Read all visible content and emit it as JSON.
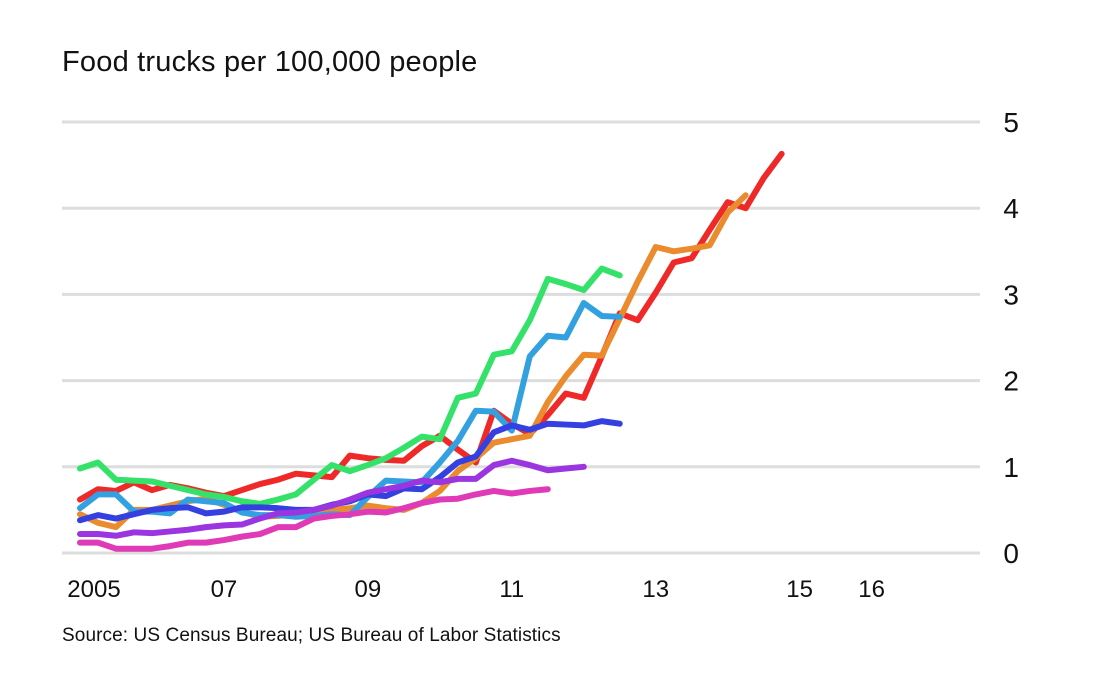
{
  "chart_data": {
    "type": "line",
    "title": "Food trucks per 100,000 people",
    "source": "Source: US Census Bureau; US Bureau of Labor Statistics",
    "xlabel": "",
    "ylabel": "",
    "xlim": [
      2005,
      2016.7
    ],
    "ylim": [
      0,
      5
    ],
    "y_ticks": [
      0,
      1,
      2,
      3,
      4,
      5
    ],
    "x_ticks": [
      {
        "value": 2005,
        "label": "2005"
      },
      {
        "value": 2007,
        "label": "07"
      },
      {
        "value": 2009,
        "label": "09"
      },
      {
        "value": 2011,
        "label": "11"
      },
      {
        "value": 2013,
        "label": "13"
      },
      {
        "value": 2015,
        "label": "15"
      },
      {
        "value": 2016,
        "label": "16"
      }
    ],
    "grid": true,
    "y_axis_side": "right",
    "series": [
      {
        "color": "#ef2828",
        "points": [
          [
            2005.0,
            0.62
          ],
          [
            2005.25,
            0.74
          ],
          [
            2005.5,
            0.72
          ],
          [
            2005.75,
            0.82
          ],
          [
            2006.0,
            0.73
          ],
          [
            2006.25,
            0.79
          ],
          [
            2006.5,
            0.75
          ],
          [
            2006.75,
            0.7
          ],
          [
            2007.0,
            0.66
          ],
          [
            2007.25,
            0.73
          ],
          [
            2007.5,
            0.8
          ],
          [
            2007.75,
            0.85
          ],
          [
            2008.0,
            0.92
          ],
          [
            2008.25,
            0.9
          ],
          [
            2008.5,
            0.88
          ],
          [
            2008.75,
            1.13
          ],
          [
            2009.0,
            1.1
          ],
          [
            2009.25,
            1.08
          ],
          [
            2009.5,
            1.07
          ],
          [
            2009.75,
            1.24
          ],
          [
            2010.0,
            1.36
          ],
          [
            2010.25,
            1.2
          ],
          [
            2010.5,
            1.05
          ],
          [
            2010.75,
            1.65
          ],
          [
            2011.0,
            1.5
          ],
          [
            2011.25,
            1.38
          ],
          [
            2011.5,
            1.6
          ],
          [
            2011.75,
            1.85
          ],
          [
            2012.0,
            1.8
          ],
          [
            2012.25,
            2.28
          ],
          [
            2012.5,
            2.78
          ],
          [
            2012.75,
            2.7
          ],
          [
            2013.0,
            3.02
          ],
          [
            2013.25,
            3.37
          ],
          [
            2013.5,
            3.42
          ],
          [
            2013.75,
            3.75
          ],
          [
            2014.0,
            4.07
          ],
          [
            2014.25,
            4.0
          ],
          [
            2014.5,
            4.35
          ],
          [
            2014.75,
            4.63
          ]
        ]
      },
      {
        "color": "#ea8b2e",
        "points": [
          [
            2005.0,
            0.45
          ],
          [
            2005.25,
            0.35
          ],
          [
            2005.5,
            0.3
          ],
          [
            2005.75,
            0.5
          ],
          [
            2006.0,
            0.5
          ],
          [
            2006.25,
            0.55
          ],
          [
            2006.5,
            0.6
          ],
          [
            2006.75,
            0.63
          ],
          [
            2007.0,
            0.56
          ],
          [
            2007.25,
            0.48
          ],
          [
            2007.5,
            0.42
          ],
          [
            2007.75,
            0.43
          ],
          [
            2008.0,
            0.45
          ],
          [
            2008.25,
            0.48
          ],
          [
            2008.5,
            0.5
          ],
          [
            2008.75,
            0.52
          ],
          [
            2009.0,
            0.55
          ],
          [
            2009.25,
            0.52
          ],
          [
            2009.5,
            0.5
          ],
          [
            2009.75,
            0.58
          ],
          [
            2010.0,
            0.72
          ],
          [
            2010.25,
            0.95
          ],
          [
            2010.5,
            1.1
          ],
          [
            2010.75,
            1.28
          ],
          [
            2011.0,
            1.32
          ],
          [
            2011.25,
            1.36
          ],
          [
            2011.5,
            1.75
          ],
          [
            2011.75,
            2.05
          ],
          [
            2012.0,
            2.3
          ],
          [
            2012.25,
            2.29
          ],
          [
            2012.5,
            2.72
          ],
          [
            2012.75,
            3.15
          ],
          [
            2013.0,
            3.55
          ],
          [
            2013.25,
            3.5
          ],
          [
            2013.5,
            3.53
          ],
          [
            2013.75,
            3.57
          ],
          [
            2014.0,
            3.95
          ],
          [
            2014.25,
            4.15
          ]
        ]
      },
      {
        "color": "#34e26a",
        "points": [
          [
            2005.0,
            0.98
          ],
          [
            2005.25,
            1.05
          ],
          [
            2005.5,
            0.85
          ],
          [
            2005.75,
            0.84
          ],
          [
            2006.0,
            0.83
          ],
          [
            2006.25,
            0.78
          ],
          [
            2006.5,
            0.73
          ],
          [
            2006.75,
            0.68
          ],
          [
            2007.0,
            0.65
          ],
          [
            2007.25,
            0.6
          ],
          [
            2007.5,
            0.57
          ],
          [
            2007.75,
            0.62
          ],
          [
            2008.0,
            0.68
          ],
          [
            2008.25,
            0.85
          ],
          [
            2008.5,
            1.02
          ],
          [
            2008.75,
            0.95
          ],
          [
            2009.0,
            1.02
          ],
          [
            2009.25,
            1.1
          ],
          [
            2009.5,
            1.22
          ],
          [
            2009.75,
            1.35
          ],
          [
            2010.0,
            1.32
          ],
          [
            2010.25,
            1.8
          ],
          [
            2010.5,
            1.85
          ],
          [
            2010.75,
            2.3
          ],
          [
            2011.0,
            2.34
          ],
          [
            2011.25,
            2.7
          ],
          [
            2011.5,
            3.18
          ],
          [
            2011.75,
            3.12
          ],
          [
            2012.0,
            3.05
          ],
          [
            2012.25,
            3.3
          ],
          [
            2012.5,
            3.22
          ]
        ]
      },
      {
        "color": "#33a1e0",
        "points": [
          [
            2005.0,
            0.52
          ],
          [
            2005.25,
            0.68
          ],
          [
            2005.5,
            0.68
          ],
          [
            2005.75,
            0.48
          ],
          [
            2006.0,
            0.48
          ],
          [
            2006.25,
            0.46
          ],
          [
            2006.5,
            0.62
          ],
          [
            2006.75,
            0.6
          ],
          [
            2007.0,
            0.58
          ],
          [
            2007.25,
            0.47
          ],
          [
            2007.5,
            0.44
          ],
          [
            2007.75,
            0.44
          ],
          [
            2008.0,
            0.42
          ],
          [
            2008.25,
            0.43
          ],
          [
            2008.5,
            0.45
          ],
          [
            2008.75,
            0.44
          ],
          [
            2009.0,
            0.65
          ],
          [
            2009.25,
            0.84
          ],
          [
            2009.5,
            0.83
          ],
          [
            2009.75,
            0.82
          ],
          [
            2010.0,
            1.05
          ],
          [
            2010.25,
            1.3
          ],
          [
            2010.5,
            1.65
          ],
          [
            2010.75,
            1.64
          ],
          [
            2011.0,
            1.42
          ],
          [
            2011.25,
            2.28
          ],
          [
            2011.5,
            2.52
          ],
          [
            2011.75,
            2.5
          ],
          [
            2012.0,
            2.9
          ],
          [
            2012.25,
            2.75
          ],
          [
            2012.5,
            2.74
          ]
        ]
      },
      {
        "color": "#3540e0",
        "points": [
          [
            2005.0,
            0.38
          ],
          [
            2005.25,
            0.44
          ],
          [
            2005.5,
            0.4
          ],
          [
            2005.75,
            0.45
          ],
          [
            2006.0,
            0.5
          ],
          [
            2006.25,
            0.52
          ],
          [
            2006.5,
            0.53
          ],
          [
            2006.75,
            0.46
          ],
          [
            2007.0,
            0.48
          ],
          [
            2007.25,
            0.53
          ],
          [
            2007.5,
            0.53
          ],
          [
            2007.75,
            0.52
          ],
          [
            2008.0,
            0.5
          ],
          [
            2008.25,
            0.5
          ],
          [
            2008.5,
            0.56
          ],
          [
            2008.75,
            0.6
          ],
          [
            2009.0,
            0.68
          ],
          [
            2009.25,
            0.66
          ],
          [
            2009.5,
            0.75
          ],
          [
            2009.75,
            0.74
          ],
          [
            2010.0,
            0.88
          ],
          [
            2010.25,
            1.05
          ],
          [
            2010.5,
            1.12
          ],
          [
            2010.75,
            1.4
          ],
          [
            2011.0,
            1.48
          ],
          [
            2011.25,
            1.43
          ],
          [
            2011.5,
            1.5
          ],
          [
            2011.75,
            1.49
          ],
          [
            2012.0,
            1.48
          ],
          [
            2012.25,
            1.53
          ],
          [
            2012.5,
            1.5
          ]
        ]
      },
      {
        "color": "#9b35e0",
        "points": [
          [
            2005.0,
            0.22
          ],
          [
            2005.25,
            0.22
          ],
          [
            2005.5,
            0.2
          ],
          [
            2005.75,
            0.24
          ],
          [
            2006.0,
            0.23
          ],
          [
            2006.25,
            0.25
          ],
          [
            2006.5,
            0.27
          ],
          [
            2006.75,
            0.3
          ],
          [
            2007.0,
            0.32
          ],
          [
            2007.25,
            0.33
          ],
          [
            2007.5,
            0.4
          ],
          [
            2007.75,
            0.46
          ],
          [
            2008.0,
            0.47
          ],
          [
            2008.25,
            0.5
          ],
          [
            2008.5,
            0.55
          ],
          [
            2008.75,
            0.62
          ],
          [
            2009.0,
            0.7
          ],
          [
            2009.25,
            0.74
          ],
          [
            2009.5,
            0.78
          ],
          [
            2009.75,
            0.84
          ],
          [
            2010.0,
            0.82
          ],
          [
            2010.25,
            0.86
          ],
          [
            2010.5,
            0.86
          ],
          [
            2010.75,
            1.02
          ],
          [
            2011.0,
            1.07
          ],
          [
            2011.25,
            1.02
          ],
          [
            2011.5,
            0.96
          ],
          [
            2011.75,
            0.98
          ],
          [
            2012.0,
            1.0
          ]
        ]
      },
      {
        "color": "#df3bb7",
        "points": [
          [
            2005.0,
            0.12
          ],
          [
            2005.25,
            0.12
          ],
          [
            2005.5,
            0.05
          ],
          [
            2005.75,
            0.05
          ],
          [
            2006.0,
            0.05
          ],
          [
            2006.25,
            0.08
          ],
          [
            2006.5,
            0.12
          ],
          [
            2006.75,
            0.12
          ],
          [
            2007.0,
            0.15
          ],
          [
            2007.25,
            0.19
          ],
          [
            2007.5,
            0.22
          ],
          [
            2007.75,
            0.3
          ],
          [
            2008.0,
            0.3
          ],
          [
            2008.25,
            0.4
          ],
          [
            2008.5,
            0.43
          ],
          [
            2008.75,
            0.45
          ],
          [
            2009.0,
            0.48
          ],
          [
            2009.25,
            0.47
          ],
          [
            2009.5,
            0.52
          ],
          [
            2009.75,
            0.58
          ],
          [
            2010.0,
            0.62
          ],
          [
            2010.25,
            0.63
          ],
          [
            2010.5,
            0.68
          ],
          [
            2010.75,
            0.72
          ],
          [
            2011.0,
            0.69
          ],
          [
            2011.25,
            0.72
          ],
          [
            2011.5,
            0.74
          ]
        ]
      }
    ]
  }
}
